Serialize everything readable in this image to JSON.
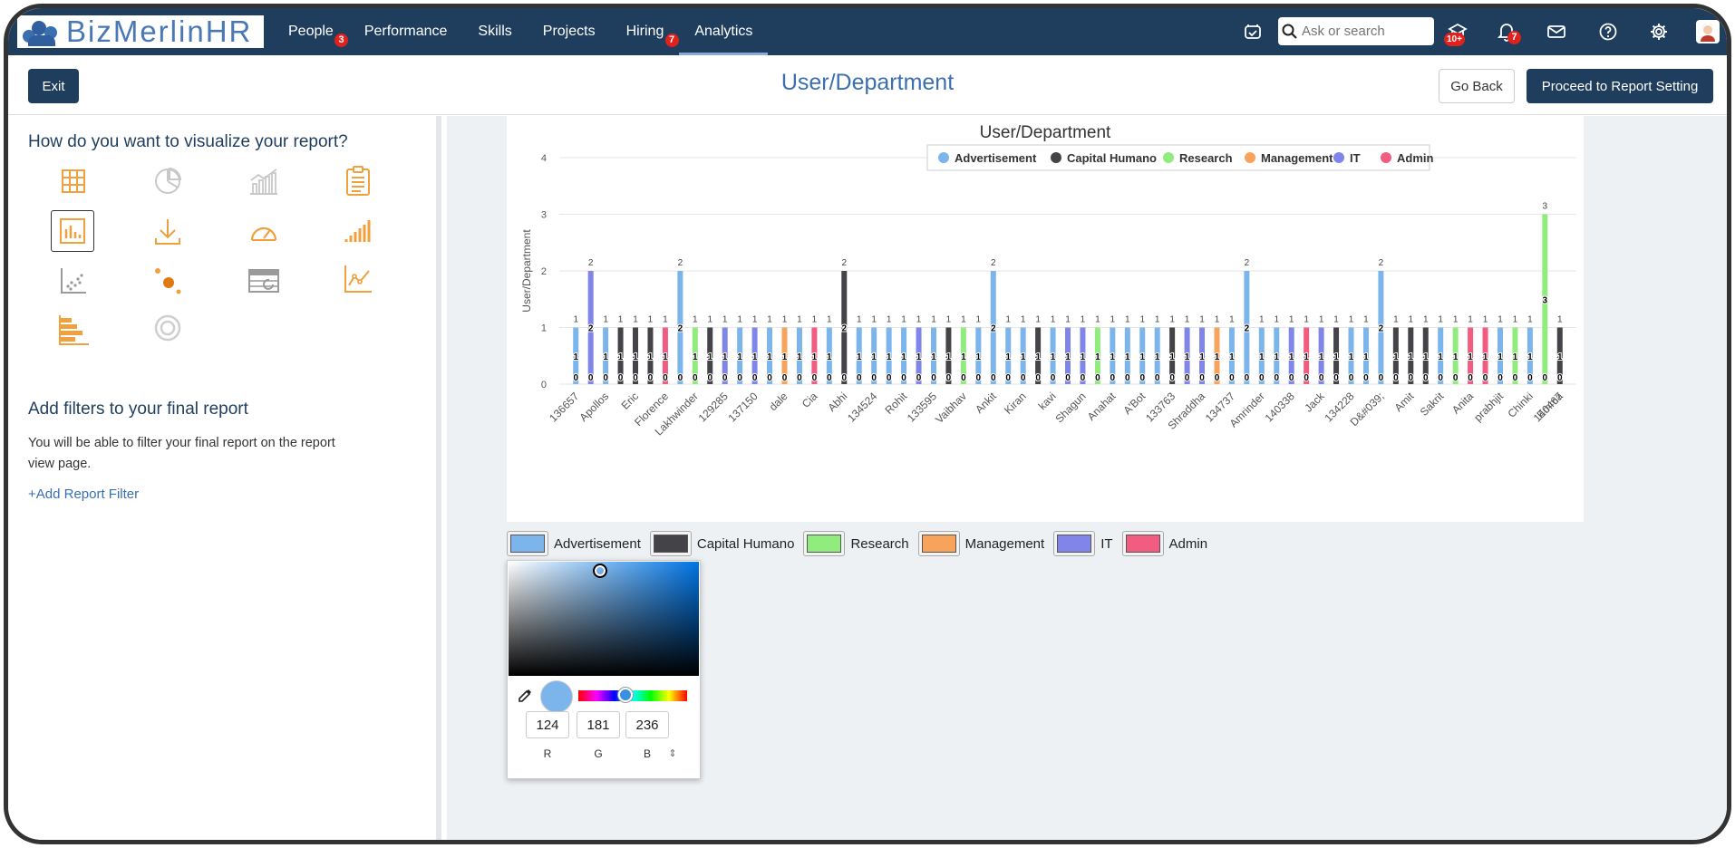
{
  "app": {
    "logo_text": "BizMerlinHR"
  },
  "nav": {
    "items": [
      {
        "label": "People",
        "badge": "3"
      },
      {
        "label": "Performance",
        "badge": ""
      },
      {
        "label": "Skills",
        "badge": ""
      },
      {
        "label": "Projects",
        "badge": ""
      },
      {
        "label": "Hiring",
        "badge": "7"
      },
      {
        "label": "Analytics",
        "badge": ""
      }
    ],
    "search_placeholder": "Ask or search",
    "announce_badge": "10+",
    "bell_badge": "7",
    "icons": [
      "calendar-check-icon",
      "search-icon",
      "announcement-icon",
      "bell-icon",
      "mail-icon",
      "help-icon",
      "gear-icon",
      "user-avatar"
    ]
  },
  "header": {
    "exit_label": "Exit",
    "title": "User/Department",
    "back_label": "Go Back",
    "proceed_label": "Proceed to Report Setting"
  },
  "left": {
    "viz_heading": "How do you want to visualize your report?",
    "viz_types": [
      "table-icon",
      "pie-chart-icon",
      "combo-chart-icon",
      "report-icon",
      "bar-chart-icon",
      "download-icon",
      "gauge-icon",
      "ascending-bars-icon",
      "scatter-icon",
      "bubble-icon",
      "pivot-table-icon",
      "line-chart-icon",
      "horizontal-bar-icon",
      "donut-icon"
    ],
    "selected_viz": "bar-chart-icon",
    "filters_heading": "Add filters to your final report",
    "filters_text": "You will be able to filter your final report on the report view page.",
    "add_filter_label": "+Add Report Filter"
  },
  "chart_data": {
    "type": "bar",
    "title": "User/Department",
    "ylabel": "User/Department",
    "xlabel": "",
    "ylim": [
      0,
      4
    ],
    "yticks": [
      0,
      1,
      2,
      3,
      4
    ],
    "grid": true,
    "legend_position": "top-center",
    "series": [
      {
        "name": "Advertisement",
        "color": "#7cb5ec"
      },
      {
        "name": "Capital Humano",
        "color": "#434348"
      },
      {
        "name": "Research",
        "color": "#90ed7d"
      },
      {
        "name": "Management",
        "color": "#f7a35c"
      },
      {
        "name": "IT",
        "color": "#8085e9"
      },
      {
        "name": "Admin",
        "color": "#f15c80"
      }
    ],
    "x_labels_shown": [
      "136657",
      "Apollos",
      "Eric",
      "Florence",
      "Lakhwinder",
      "129285",
      "137150",
      "dale",
      "Cia",
      "Abhi",
      "134524",
      "Rohit",
      "133595",
      "Vaibhav",
      "Ankit",
      "Kiran",
      "kavi",
      "Shagun",
      "Anahat",
      "A'Bot",
      "133763",
      "Shraddha",
      "134737",
      "Amrinder",
      "140338",
      "Jack",
      "134228",
      "D&#039;",
      "Amit",
      "Sakrit",
      "Anita",
      "prabhjit",
      "Chinki",
      "140467",
      "Emma"
    ],
    "bars": [
      {
        "series": "Advertisement",
        "value": 1
      },
      {
        "series": "IT",
        "value": 2
      },
      {
        "series": "Advertisement",
        "value": 1
      },
      {
        "series": "Capital Humano",
        "value": 1
      },
      {
        "series": "Capital Humano",
        "value": 1
      },
      {
        "series": "Capital Humano",
        "value": 1
      },
      {
        "series": "Admin",
        "value": 1
      },
      {
        "series": "Advertisement",
        "value": 2
      },
      {
        "series": "Research",
        "value": 1
      },
      {
        "series": "Capital Humano",
        "value": 1
      },
      {
        "series": "IT",
        "value": 1
      },
      {
        "series": "Advertisement",
        "value": 1
      },
      {
        "series": "IT",
        "value": 1
      },
      {
        "series": "Advertisement",
        "value": 1
      },
      {
        "series": "Management",
        "value": 1
      },
      {
        "series": "Advertisement",
        "value": 1
      },
      {
        "series": "Admin",
        "value": 1
      },
      {
        "series": "Advertisement",
        "value": 1
      },
      {
        "series": "Capital Humano",
        "value": 2
      },
      {
        "series": "Advertisement",
        "value": 1
      },
      {
        "series": "Advertisement",
        "value": 1
      },
      {
        "series": "Advertisement",
        "value": 1
      },
      {
        "series": "Advertisement",
        "value": 1
      },
      {
        "series": "IT",
        "value": 1
      },
      {
        "series": "Advertisement",
        "value": 1
      },
      {
        "series": "Capital Humano",
        "value": 1
      },
      {
        "series": "Research",
        "value": 1
      },
      {
        "series": "Advertisement",
        "value": 1
      },
      {
        "series": "Advertisement",
        "value": 2
      },
      {
        "series": "Advertisement",
        "value": 1
      },
      {
        "series": "Advertisement",
        "value": 1
      },
      {
        "series": "Capital Humano",
        "value": 1
      },
      {
        "series": "Advertisement",
        "value": 1
      },
      {
        "series": "IT",
        "value": 1
      },
      {
        "series": "IT",
        "value": 1
      },
      {
        "series": "Research",
        "value": 1
      },
      {
        "series": "Advertisement",
        "value": 1
      },
      {
        "series": "Advertisement",
        "value": 1
      },
      {
        "series": "Advertisement",
        "value": 1
      },
      {
        "series": "Advertisement",
        "value": 1
      },
      {
        "series": "Capital Humano",
        "value": 1
      },
      {
        "series": "IT",
        "value": 1
      },
      {
        "series": "IT",
        "value": 1
      },
      {
        "series": "Management",
        "value": 1
      },
      {
        "series": "Advertisement",
        "value": 1
      },
      {
        "series": "Advertisement",
        "value": 2
      },
      {
        "series": "Advertisement",
        "value": 1
      },
      {
        "series": "Advertisement",
        "value": 1
      },
      {
        "series": "IT",
        "value": 1
      },
      {
        "series": "Admin",
        "value": 1
      },
      {
        "series": "IT",
        "value": 1
      },
      {
        "series": "Capital Humano",
        "value": 1
      },
      {
        "series": "Advertisement",
        "value": 1
      },
      {
        "series": "Advertisement",
        "value": 1
      },
      {
        "series": "Advertisement",
        "value": 2
      },
      {
        "series": "Capital Humano",
        "value": 1
      },
      {
        "series": "Capital Humano",
        "value": 1
      },
      {
        "series": "Capital Humano",
        "value": 1
      },
      {
        "series": "Advertisement",
        "value": 1
      },
      {
        "series": "Research",
        "value": 1
      },
      {
        "series": "Admin",
        "value": 1
      },
      {
        "series": "Admin",
        "value": 1
      },
      {
        "series": "Advertisement",
        "value": 1
      },
      {
        "series": "Research",
        "value": 1
      },
      {
        "series": "Advertisement",
        "value": 1
      },
      {
        "series": "Research",
        "value": 3
      },
      {
        "series": "Capital Humano",
        "value": 1
      }
    ]
  },
  "color_editor": {
    "legend": [
      {
        "label": "Advertisement",
        "color": "#7cb5ec"
      },
      {
        "label": "Capital Humano",
        "color": "#434348"
      },
      {
        "label": "Research",
        "color": "#90ed7d"
      },
      {
        "label": "Management",
        "color": "#f7a35c"
      },
      {
        "label": "IT",
        "color": "#8085e9"
      },
      {
        "label": "Admin",
        "color": "#f15c80"
      }
    ],
    "picker": {
      "preview_color": "#7cb5ec",
      "r": "124",
      "g": "181",
      "b": "236",
      "r_label": "R",
      "g_label": "G",
      "b_label": "B",
      "mode_toggle": "⇕"
    }
  }
}
